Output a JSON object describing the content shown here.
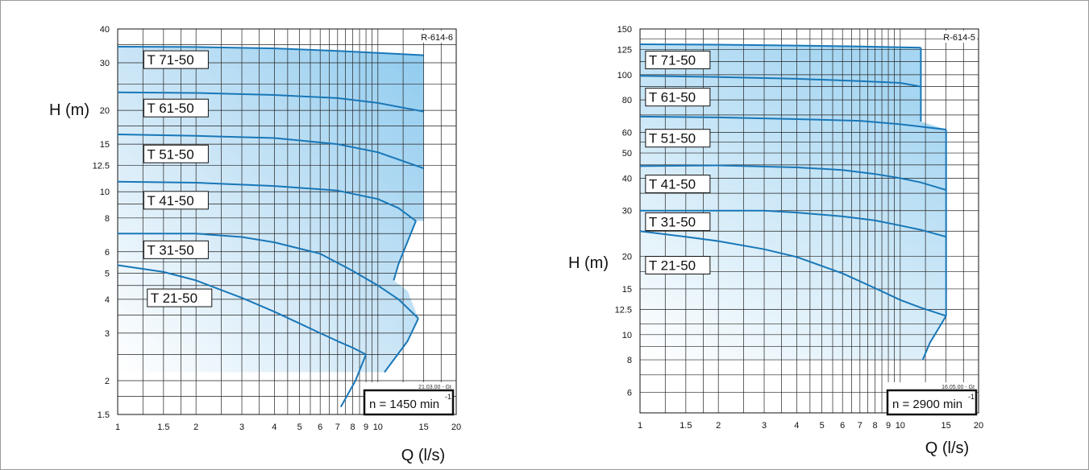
{
  "charts": [
    {
      "id": "left",
      "code": "R-614-6",
      "date_code": "21.03.00 - Gt",
      "speed_label": "n = 1450 min",
      "speed_exp": "-1",
      "ylabel": "H (m)",
      "xlabel": "Q (l/s)",
      "xlim": [
        1,
        20
      ],
      "ylim": [
        1.5,
        40
      ],
      "x_ticks": [
        1,
        1.5,
        2,
        3,
        4,
        5,
        6,
        7,
        8,
        9,
        10,
        15,
        20
      ],
      "x_tick_labels": [
        "1",
        "1.5",
        "2",
        "3",
        "4",
        "5",
        "6",
        "7",
        "8",
        "9",
        "10",
        "15",
        "20"
      ],
      "y_ticks": [
        1.5,
        2,
        3,
        4,
        5,
        6,
        8,
        10,
        12.5,
        15,
        20,
        30,
        40
      ],
      "y_tick_labels": [
        "1.5",
        "2",
        "3",
        "4",
        "5",
        "6",
        "8",
        "10",
        "12.5",
        "15",
        "20",
        "30",
        "40"
      ],
      "x_grid": [
        1.25,
        1.5,
        1.75,
        2,
        2.5,
        3,
        3.5,
        4,
        4.5,
        5,
        5.5,
        6,
        6.5,
        7,
        7.5,
        8,
        8.5,
        9,
        9.5,
        10,
        12.5,
        15,
        17.5
      ],
      "y_grid": [
        1.75,
        2,
        2.5,
        3,
        3.5,
        4,
        4.5,
        5,
        5.5,
        6,
        7,
        8,
        9,
        10,
        12.5,
        15,
        17.5,
        20,
        25,
        30,
        35
      ],
      "models": [
        {
          "name": "T 71-50",
          "label_q": 1.26,
          "label_h": 30.8
        },
        {
          "name": "T 61-50",
          "label_q": 1.26,
          "label_h": 20.4
        },
        {
          "name": "T 51-50",
          "label_q": 1.26,
          "label_h": 13.8
        },
        {
          "name": "T 41-50",
          "label_q": 1.26,
          "label_h": 9.3
        },
        {
          "name": "T 31-50",
          "label_q": 1.26,
          "label_h": 6.1
        },
        {
          "name": "T 21-50",
          "label_q": 1.3,
          "label_h": 4.05
        }
      ],
      "region": [
        [
          1,
          34.4
        ],
        [
          2,
          34.3
        ],
        [
          4,
          33.9
        ],
        [
          7,
          33.2
        ],
        [
          10,
          32.6
        ],
        [
          15,
          32
        ],
        [
          15,
          7.8
        ],
        [
          14,
          7.8
        ],
        [
          12,
          5.4
        ],
        [
          11.5,
          4.7
        ],
        [
          13,
          4.3
        ],
        [
          14.3,
          3.4
        ],
        [
          13,
          2.8
        ],
        [
          10.6,
          2.15
        ],
        [
          1,
          2.15
        ]
      ],
      "curves": [
        {
          "model": "T 71-50",
          "points": [
            [
              1,
              34.4
            ],
            [
              2,
              34.3
            ],
            [
              4,
              33.9
            ],
            [
              7,
              33.2
            ],
            [
              10,
              32.6
            ],
            [
              15,
              32
            ]
          ]
        },
        {
          "model": "T 61-50",
          "points": [
            [
              1,
              23.3
            ],
            [
              2,
              23.2
            ],
            [
              4,
              22.8
            ],
            [
              7,
              22.2
            ],
            [
              10,
              21.3
            ],
            [
              15,
              19.8
            ]
          ]
        },
        {
          "model": "T 51-50",
          "points": [
            [
              1,
              16.3
            ],
            [
              2,
              16.1
            ],
            [
              4,
              15.8
            ],
            [
              7,
              15
            ],
            [
              10,
              14
            ],
            [
              15,
              12.2
            ]
          ]
        },
        {
          "model": "T 41-50",
          "points": [
            [
              1,
              10.9
            ],
            [
              2,
              10.8
            ],
            [
              4,
              10.5
            ],
            [
              7,
              10.1
            ],
            [
              10,
              9.4
            ],
            [
              12,
              8.7
            ],
            [
              14,
              7.8
            ]
          ]
        },
        {
          "model": "T 31-50",
          "points": [
            [
              1,
              7.0
            ],
            [
              2,
              7.0
            ],
            [
              3,
              6.8
            ],
            [
              4,
              6.5
            ],
            [
              6,
              5.9
            ],
            [
              8,
              5.1
            ],
            [
              10,
              4.5
            ],
            [
              12,
              4.0
            ],
            [
              14.3,
              3.4
            ]
          ]
        },
        {
          "model": "T 21-50",
          "points": [
            [
              1,
              5.35
            ],
            [
              1.5,
              5.05
            ],
            [
              2,
              4.7
            ],
            [
              3,
              4.05
            ],
            [
              4,
              3.6
            ],
            [
              6,
              3.0
            ],
            [
              7,
              2.8
            ],
            [
              8,
              2.65
            ],
            [
              9,
              2.5
            ]
          ]
        }
      ],
      "envelope_lines": [
        {
          "points": [
            [
              14,
              7.8
            ],
            [
              12,
              5.4
            ],
            [
              11.5,
              4.7
            ]
          ]
        },
        {
          "points": [
            [
              14.3,
              3.4
            ],
            [
              13,
              2.8
            ],
            [
              10.6,
              2.15
            ]
          ]
        },
        {
          "points": [
            [
              9,
              2.5
            ],
            [
              8.2,
              2.0
            ],
            [
              7.2,
              1.6
            ]
          ]
        }
      ]
    },
    {
      "id": "right",
      "code": "R-614-5",
      "date_code": "16.05.00 - Gt",
      "speed_label": "n = 2900 min",
      "speed_exp": "-1",
      "ylabel": "H (m)",
      "xlabel": "Q (l/s)",
      "xlim": [
        1,
        20
      ],
      "ylim": [
        5,
        150
      ],
      "x_ticks": [
        1,
        1.5,
        2,
        3,
        4,
        5,
        6,
        7,
        8,
        9,
        10,
        15,
        20
      ],
      "x_tick_labels": [
        "1",
        "1.5",
        "2",
        "3",
        "4",
        "5",
        "6",
        "7",
        "8",
        "9",
        "10",
        "15",
        "20"
      ],
      "y_ticks": [
        6,
        8,
        10,
        12.5,
        15,
        20,
        30,
        40,
        50,
        60,
        80,
        100,
        125,
        150
      ],
      "y_tick_labels": [
        "6",
        "8",
        "10",
        "12.5",
        "15",
        "20",
        "30",
        "40",
        "50",
        "60",
        "80",
        "100",
        "125",
        "150"
      ],
      "x_grid": [
        1.25,
        1.5,
        1.75,
        2,
        2.5,
        3,
        3.5,
        4,
        4.5,
        5,
        5.5,
        6,
        6.5,
        7,
        7.5,
        8,
        8.5,
        9,
        9.5,
        10,
        12.5,
        15,
        17.5
      ],
      "y_grid": [
        6,
        7,
        8,
        9,
        10,
        11,
        12.5,
        15,
        17.5,
        20,
        25,
        30,
        35,
        40,
        45,
        50,
        55,
        60,
        70,
        80,
        90,
        100,
        112.5,
        125,
        137.5
      ],
      "models": [
        {
          "name": "T 71-50",
          "label_q": 1.05,
          "label_h": 114
        },
        {
          "name": "T 61-50",
          "label_q": 1.05,
          "label_h": 82
        },
        {
          "name": "T 51-50",
          "label_q": 1.05,
          "label_h": 57
        },
        {
          "name": "T 41-50",
          "label_q": 1.05,
          "label_h": 38
        },
        {
          "name": "T 31-50",
          "label_q": 1.05,
          "label_h": 27.2
        },
        {
          "name": "T 21-50",
          "label_q": 1.05,
          "label_h": 18.5
        }
      ],
      "region": [
        [
          1,
          131
        ],
        [
          2,
          130.5
        ],
        [
          4,
          129.5
        ],
        [
          7,
          128.5
        ],
        [
          10,
          127.5
        ],
        [
          12,
          127
        ],
        [
          12,
          66
        ],
        [
          15,
          61.5
        ],
        [
          15,
          11.8
        ],
        [
          13,
          9.3
        ],
        [
          12.2,
          8
        ],
        [
          1,
          8
        ]
      ],
      "curves": [
        {
          "model": "T 71-50",
          "points": [
            [
              1,
              131
            ],
            [
              2,
              130.5
            ],
            [
              4,
              129.5
            ],
            [
              7,
              128.5
            ],
            [
              10,
              127.5
            ],
            [
              12,
              127
            ]
          ]
        },
        {
          "model": "T 61-50",
          "points": [
            [
              1,
              99
            ],
            [
              2,
              98
            ],
            [
              4,
              96.5
            ],
            [
              7,
              94.5
            ],
            [
              10,
              93
            ],
            [
              12,
              90
            ]
          ]
        },
        {
          "model": "T 51-50",
          "points": [
            [
              1,
              69
            ],
            [
              2,
              68.5
            ],
            [
              4,
              67.5
            ],
            [
              7,
              66.5
            ],
            [
              10,
              64.5
            ],
            [
              15,
              61.5
            ]
          ]
        },
        {
          "model": "T 41-50",
          "points": [
            [
              1,
              44.5
            ],
            [
              2,
              44.8
            ],
            [
              4,
              44
            ],
            [
              6,
              43
            ],
            [
              8,
              41.5
            ],
            [
              10,
              40
            ],
            [
              12,
              38.5
            ],
            [
              15,
              36
            ]
          ]
        },
        {
          "model": "T 31-50",
          "points": [
            [
              1,
              30
            ],
            [
              2,
              30
            ],
            [
              3,
              30
            ],
            [
              4,
              29.5
            ],
            [
              6,
              28.5
            ],
            [
              8,
              27.5
            ],
            [
              10,
              26.3
            ],
            [
              12,
              25.3
            ],
            [
              15,
              23.8
            ]
          ]
        },
        {
          "model": "T 21-50",
          "points": [
            [
              1,
              25
            ],
            [
              1.5,
              23.8
            ],
            [
              2,
              22.9
            ],
            [
              3,
              21.3
            ],
            [
              4,
              19.9
            ],
            [
              6,
              17.2
            ],
            [
              8,
              15.1
            ],
            [
              10,
              13.6
            ],
            [
              12,
              12.7
            ],
            [
              15,
              11.8
            ]
          ]
        }
      ],
      "envelope_lines": [
        {
          "points": [
            [
              12,
              127
            ],
            [
              12,
              66
            ]
          ]
        },
        {
          "points": [
            [
              15,
              61.5
            ],
            [
              15,
              11.8
            ]
          ]
        },
        {
          "points": [
            [
              15,
              11.8
            ],
            [
              13,
              9.3
            ],
            [
              12.2,
              8
            ]
          ]
        }
      ]
    }
  ]
}
